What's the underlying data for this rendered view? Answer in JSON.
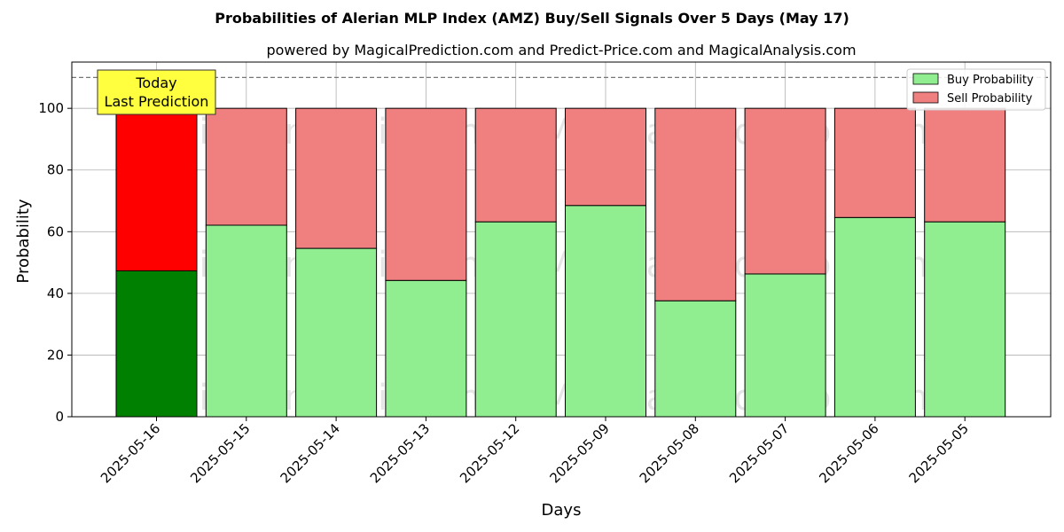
{
  "chart_data": {
    "type": "bar",
    "stacked": true,
    "title": "Probabilities of Alerian MLP Index (AMZ) Buy/Sell Signals Over 5 Days (May 17)",
    "subtitle": "powered by MagicalPrediction.com and Predict-Price.com and MagicalAnalysis.com",
    "xlabel": "Days",
    "ylabel": "Probability",
    "ylim": [
      0,
      115
    ],
    "yticks": [
      0,
      20,
      40,
      60,
      80,
      100
    ],
    "reference_line": 110,
    "grid": true,
    "legend_position": "top-right",
    "categories": [
      "2025-05-16",
      "2025-05-15",
      "2025-05-14",
      "2025-05-13",
      "2025-05-12",
      "2025-05-09",
      "2025-05-08",
      "2025-05-07",
      "2025-05-06",
      "2025-05-05"
    ],
    "series": [
      {
        "name": "Buy Probability",
        "color": "#90ee90",
        "highlight_color": "#008000",
        "values": [
          47.3,
          62.1,
          54.6,
          44.2,
          63.2,
          68.5,
          37.6,
          46.3,
          64.6,
          63.2
        ]
      },
      {
        "name": "Sell Probability",
        "color": "#f08080",
        "highlight_color": "#ff0000",
        "values": [
          52.7,
          37.9,
          45.4,
          55.8,
          36.8,
          31.5,
          62.4,
          53.7,
          35.4,
          36.8
        ]
      }
    ],
    "annotation": {
      "lines": [
        "Today",
        "Last Prediction"
      ],
      "category_index": 0,
      "box_color": "#ffff40"
    },
    "watermarks": [
      "MagicalAnalysis.com",
      "MagicalPrediction.com"
    ]
  }
}
